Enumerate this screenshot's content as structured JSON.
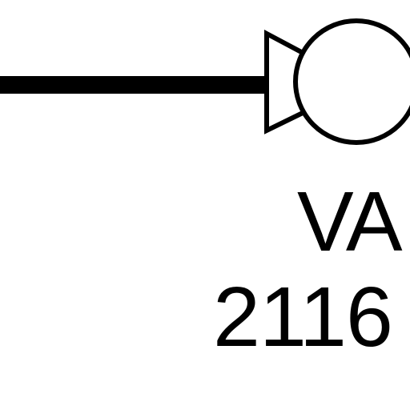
{
  "diagram": {
    "symbol_label_line1": "VA",
    "symbol_label_line2": "2116",
    "colors": {
      "stroke": "#000000",
      "background": "#ffffff"
    },
    "symbol": {
      "type": "valve-actuator-symbol",
      "parts": [
        "pipe-line",
        "triangle-body",
        "circle-head"
      ]
    }
  }
}
